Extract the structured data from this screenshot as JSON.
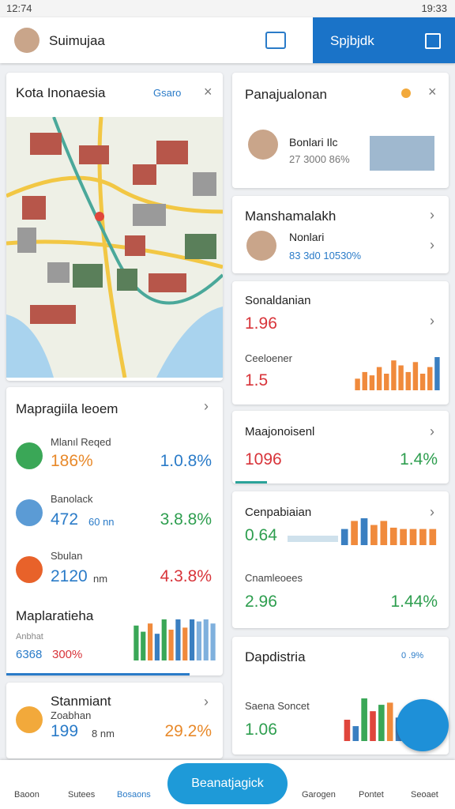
{
  "status": {
    "time": "12:74",
    "clock": "19:33"
  },
  "header": {
    "user": "Suimujaa",
    "button": "Spjbjdk"
  },
  "map_card": {
    "title": "Kota Inonaesia",
    "badge": "Gsaro"
  },
  "stats_card": {
    "title": "Mapragiila leoem",
    "items": [
      {
        "label": "Mlanıl Reqed",
        "value": "186%",
        "change": "1.0.8%"
      },
      {
        "label": "Banolack",
        "value": "472",
        "unit": "60 nn",
        "change": "3.8.8%"
      },
      {
        "label": "Sbulan",
        "value": "2120",
        "unit": "nm",
        "change": "4.3.8%"
      }
    ],
    "sub_title": "Maplaratieha",
    "sub_label": "Anbhat",
    "sub_value": "6368",
    "sub_change": "300%",
    "chart": {
      "values": [
        0.85,
        0.7,
        0.9,
        0.65,
        1,
        0.75,
        1,
        0.8,
        1,
        0.95,
        1,
        0.9
      ],
      "colors": [
        "#3aa757",
        "#3aa757",
        "#f08a3c",
        "#3a7fc1",
        "#3aa757",
        "#f08a3c",
        "#3a7fc1",
        "#f08a3c",
        "#3a7fc1",
        "#7fb0dd",
        "#7fb0dd",
        "#7fb0dd"
      ]
    }
  },
  "small_card": {
    "title": "Stanmiant",
    "label": "Zoabhan",
    "value": "199",
    "unit": "8 nm",
    "change": "29.2%"
  },
  "right_cards": {
    "sales": {
      "title": "Panajualonan",
      "name": "Bonlari Ilc",
      "detail": "27 3000 86%"
    },
    "manage": {
      "title": "Manshamalakh",
      "name": "Nonlari",
      "detail": "83 3d0 10530%"
    },
    "sonal": {
      "title": "Sonaldanian",
      "value": "1.96",
      "label": "Ceeloener",
      "value2": "1.5",
      "chart": {
        "values": [
          0.35,
          0.55,
          0.45,
          0.7,
          0.5,
          0.9,
          0.75,
          0.55,
          0.85,
          0.5,
          0.7,
          1
        ],
        "colors": [
          "#f08a3c",
          "#f08a3c",
          "#f08a3c",
          "#f08a3c",
          "#f08a3c",
          "#f08a3c",
          "#f08a3c",
          "#f08a3c",
          "#f08a3c",
          "#f08a3c",
          "#f08a3c",
          "#3a7fc1"
        ]
      }
    },
    "major": {
      "title": "Maajonoisenl",
      "value": "1096",
      "change": "1.4%"
    },
    "cenpa": {
      "title": "Cenpabiaian",
      "value": "0.64",
      "label": "Cnamleoees",
      "value2": "2.96",
      "change": "1.44%",
      "chart": {
        "values": [
          0.6,
          0.9,
          1,
          0.75,
          0.9,
          0.65,
          0.6,
          0.6,
          0.6,
          0.6
        ],
        "colors": [
          "#3a7fc1",
          "#f08a3c",
          "#3a7fc1",
          "#f08a3c",
          "#f08a3c",
          "#f08a3c",
          "#f08a3c",
          "#f08a3c",
          "#f08a3c",
          "#f08a3c"
        ]
      }
    },
    "dap": {
      "title": "Dapdistria",
      "badge": "0 .9%",
      "label": "Saena Soncet",
      "value": "1.06",
      "chart": {
        "values": [
          0.5,
          0.35,
          1,
          0.7,
          0.85,
          0.9,
          0.55
        ],
        "colors": [
          "#e0463c",
          "#3a7fc1",
          "#3aa757",
          "#e0463c",
          "#3aa757",
          "#f08a3c",
          "#3a7fc1"
        ]
      }
    }
  },
  "nav": {
    "items": [
      "Baoon",
      "Sutees",
      "Bosaons",
      "Garogen",
      "Pontet",
      "Seoaet"
    ],
    "main": "Beanatjagick"
  }
}
